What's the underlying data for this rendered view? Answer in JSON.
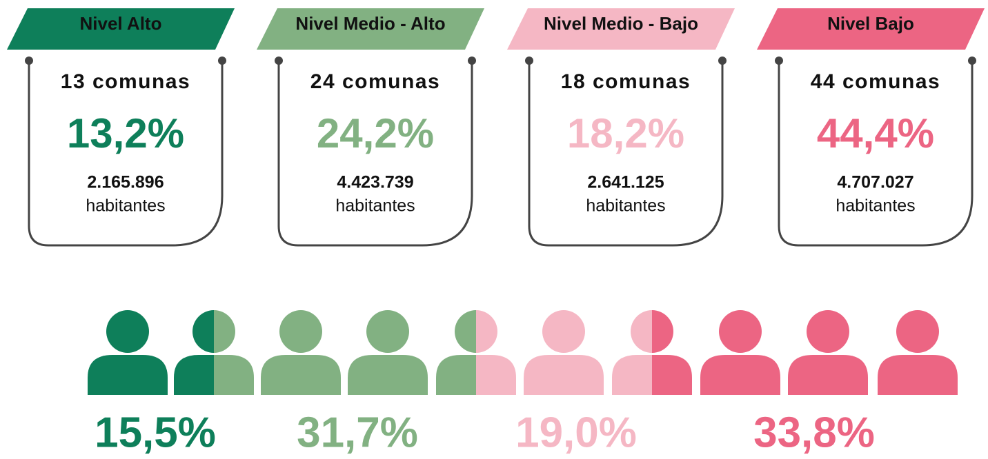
{
  "cards": [
    {
      "level": "Nivel Alto",
      "comunas": "13 comunas",
      "percent": "13,2%",
      "population": "2.165.896",
      "unit": "habitantes",
      "color": "#0e7f5a"
    },
    {
      "level": "Nivel Medio - Alto",
      "comunas": "24 comunas",
      "percent": "24,2%",
      "population": "4.423.739",
      "unit": "habitantes",
      "color": "#82b182"
    },
    {
      "level": "Nivel Medio - Bajo",
      "comunas": "18 comunas",
      "percent": "18,2%",
      "population": "2.641.125",
      "unit": "habitantes",
      "color": "#f5b7c4"
    },
    {
      "level": "Nivel Bajo",
      "comunas": "44 comunas",
      "percent": "44,4%",
      "population": "4.707.027",
      "unit": "habitantes",
      "color": "#ec6583"
    }
  ],
  "pictogram": {
    "groups": [
      {
        "percent": "15,5%",
        "color": "#0e7f5a"
      },
      {
        "percent": "31,7%",
        "color": "#82b182"
      },
      {
        "percent": "19,0%",
        "color": "#f5b7c4"
      },
      {
        "percent": "33,8%",
        "color": "#ec6583"
      }
    ]
  }
}
